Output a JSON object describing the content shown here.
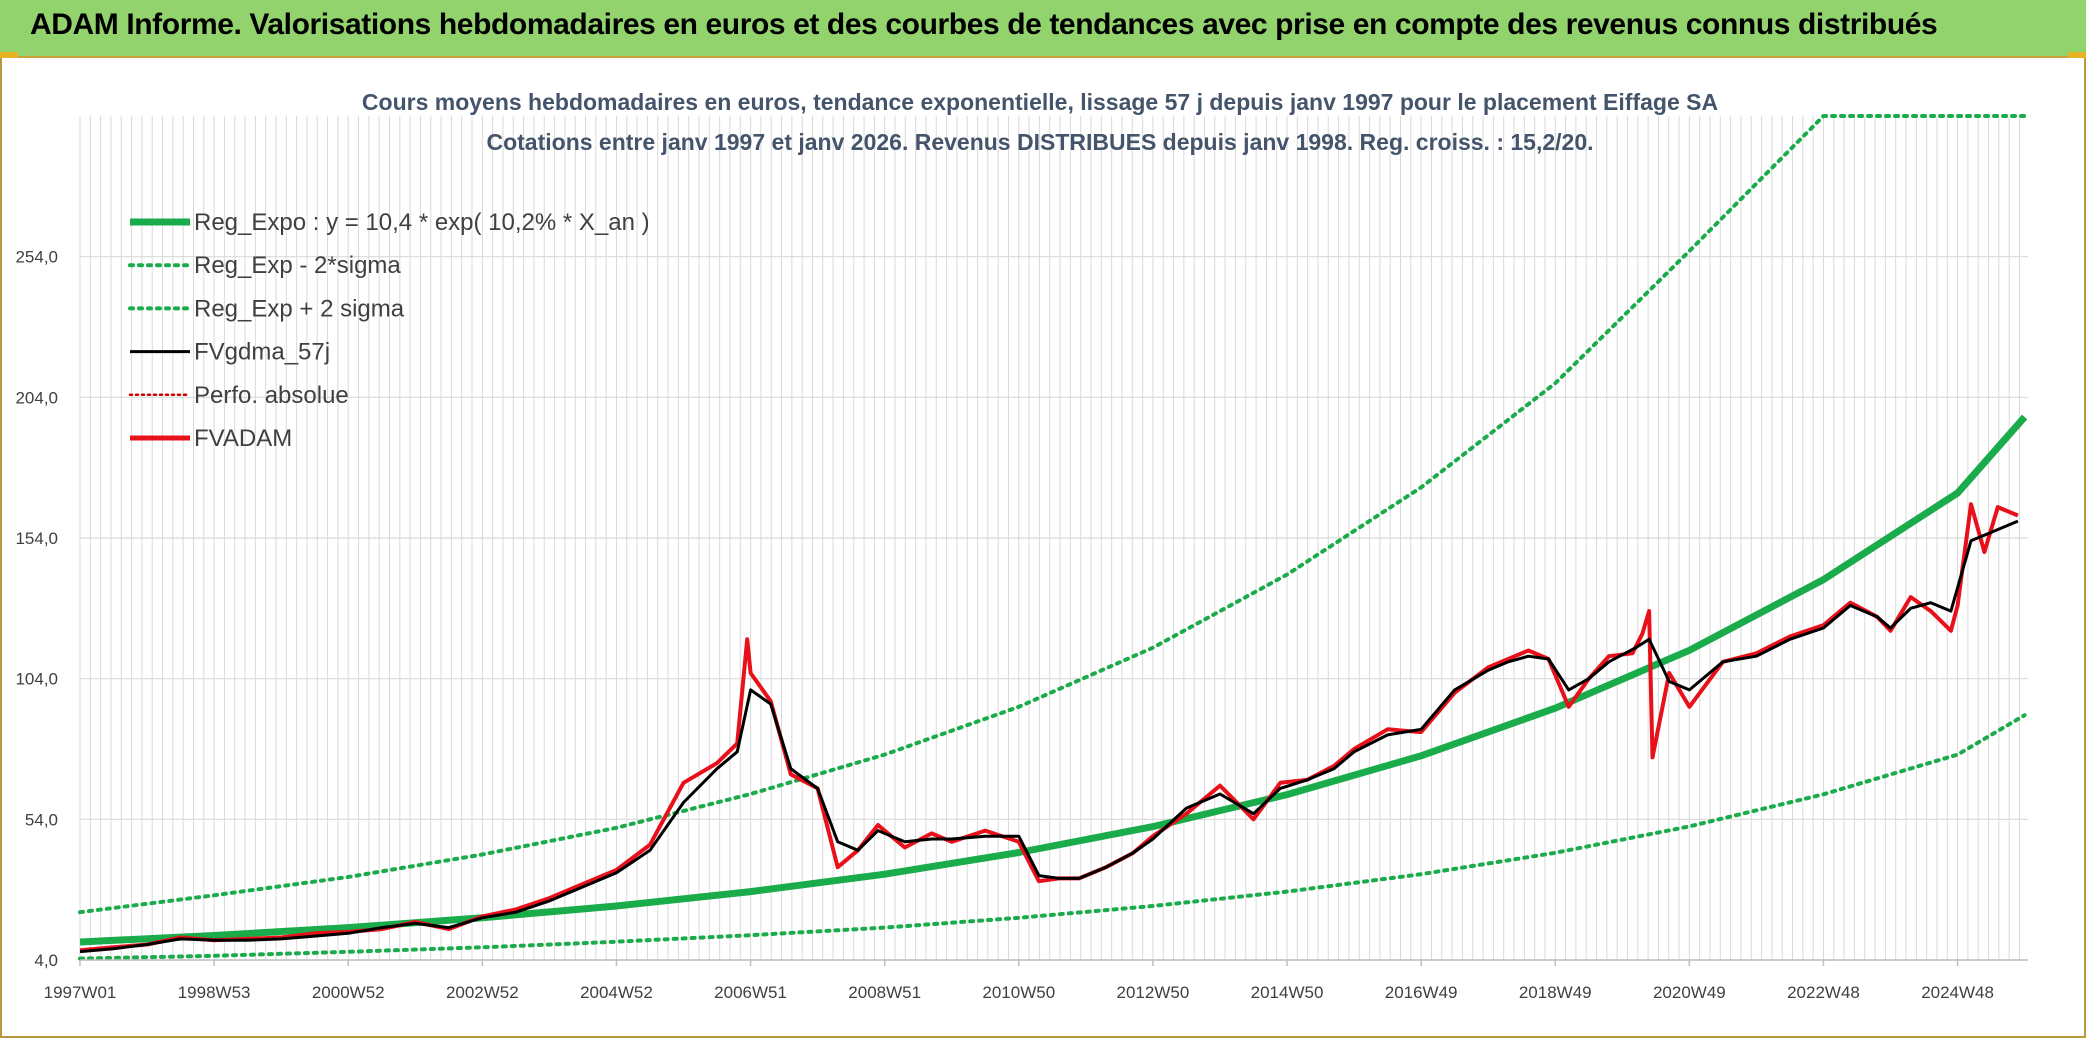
{
  "banner": {
    "title": "ADAM Informe. Valorisations hebdomadaires en euros et des courbes de tendances avec prise en compte des revenus connus distribués"
  },
  "colors": {
    "banner_bg": "#92d36e",
    "trend": "#1aab4a",
    "bands": "#1aab4a",
    "smoothed": "#000000",
    "perfo": "#d40000",
    "fvadam": "#e8101a",
    "grid": "#d9d9d9"
  },
  "chart_data": {
    "type": "line",
    "title": "Cours moyens hebdomadaires en euros, tendance exponentielle, lissage 57 j depuis janv 1997 pour le placement Eiffage SA",
    "subtitle": "Cotations entre janv 1997 et janv 2026. Revenus DISTRIBUES depuis janv 1998. Reg. croiss. : 15,2/20.",
    "xlabel": "",
    "ylabel": "",
    "x_range": [
      "1997W01",
      "2026W01"
    ],
    "x_ticks": [
      "1997W01",
      "1998W53",
      "2000W52",
      "2002W52",
      "2004W52",
      "2006W51",
      "2008W51",
      "2010W50",
      "2012W50",
      "2014W50",
      "2016W49",
      "2018W49",
      "2020W49",
      "2022W48",
      "2024W48"
    ],
    "x_tick_years": [
      1997.0,
      1999.0,
      2001.0,
      2003.0,
      2005.0,
      2007.0,
      2009.0,
      2011.0,
      2013.0,
      2015.0,
      2017.0,
      2019.0,
      2021.0,
      2023.0,
      2025.0
    ],
    "ylim": [
      4,
      304
    ],
    "y_ticks": [
      "4,0",
      "54,0",
      "104,0",
      "154,0",
      "204,0",
      "254,0"
    ],
    "y_tick_values": [
      4,
      54,
      104,
      154,
      204,
      254
    ],
    "grid": true,
    "legend_position": "top-left",
    "legend": [
      {
        "label": "Reg_Expo : y = 10,4 * exp( 10,2% *  X_an )",
        "style": "solid-thick",
        "color": "#1aab4a"
      },
      {
        "label": "Reg_Exp - 2*sigma",
        "style": "dotted",
        "color": "#1aab4a"
      },
      {
        "label": "Reg_Exp + 2 sigma",
        "style": "dotted",
        "color": "#1aab4a"
      },
      {
        "label": "FVgdma_57j",
        "style": "solid",
        "color": "#000000"
      },
      {
        "label": "Perfo. absolue",
        "style": "dotted",
        "color": "#d40000"
      },
      {
        "label": "FVADAM",
        "style": "solid-thick",
        "color": "#e8101a"
      }
    ],
    "series": [
      {
        "name": "Reg_Expo : y = 10,4 * exp( 10,2% *  X_an )",
        "x": [
          1997.0,
          1999.0,
          2001.0,
          2003.0,
          2005.0,
          2007.0,
          2009.0,
          2011.0,
          2013.0,
          2015.0,
          2017.0,
          2019.0,
          2021.0,
          2023.0,
          2025.0,
          2026.0
        ],
        "values": [
          10.4,
          12.7,
          15.5,
          19.0,
          23.2,
          28.3,
          34.5,
          42.2,
          51.4,
          62.8,
          76.6,
          93.5,
          114.1,
          139.2,
          170.0,
          197.0
        ]
      },
      {
        "name": "Reg_Exp - 2*sigma",
        "x": [
          1997.0,
          1999.0,
          2001.0,
          2003.0,
          2005.0,
          2007.0,
          2009.0,
          2011.0,
          2013.0,
          2015.0,
          2017.0,
          2019.0,
          2021.0,
          2023.0,
          2025.0,
          2026.0
        ],
        "values": [
          4.5,
          5.5,
          6.9,
          8.5,
          10.5,
          12.8,
          15.5,
          19.0,
          23.2,
          28.3,
          34.5,
          42.1,
          51.5,
          62.9,
          77.0,
          91.0
        ]
      },
      {
        "name": "Reg_Exp + 2 sigma",
        "x": [
          1997.0,
          1999.0,
          2001.0,
          2003.0,
          2005.0,
          2007.0,
          2009.0,
          2011.0,
          2013.0,
          2015.0,
          2017.0,
          2019.0,
          2021.0,
          2023.0,
          2025.0,
          2026.0
        ],
        "values": [
          21.0,
          27.0,
          33.5,
          41.5,
          51.0,
          63.0,
          77.0,
          94.0,
          115.0,
          141.0,
          172.0,
          209.0,
          256.0,
          304.0,
          304.0,
          304.0
        ]
      },
      {
        "name": "FVgdma_57j",
        "x": [
          1997.0,
          1997.5,
          1998.0,
          1998.5,
          1999.0,
          1999.5,
          2000.0,
          2000.5,
          2001.0,
          2001.5,
          2002.0,
          2002.5,
          2003.0,
          2003.5,
          2004.0,
          2004.5,
          2005.0,
          2005.5,
          2006.0,
          2006.5,
          2006.8,
          2007.0,
          2007.3,
          2007.6,
          2008.0,
          2008.3,
          2008.6,
          2008.9,
          2009.3,
          2009.7,
          2010.0,
          2010.5,
          2011.0,
          2011.3,
          2011.6,
          2011.9,
          2012.3,
          2012.7,
          2013.0,
          2013.5,
          2014.0,
          2014.5,
          2014.9,
          2015.3,
          2015.7,
          2016.0,
          2016.5,
          2017.0,
          2017.5,
          2018.0,
          2018.3,
          2018.6,
          2018.9,
          2019.2,
          2019.5,
          2019.8,
          2020.2,
          2020.4,
          2020.7,
          2021.0,
          2021.5,
          2022.0,
          2022.5,
          2023.0,
          2023.4,
          2023.8,
          2024.0,
          2024.3,
          2024.6,
          2024.9,
          2025.2,
          2025.5,
          2025.9
        ],
        "values": [
          7.0,
          8.0,
          9.5,
          11.5,
          11.0,
          11.0,
          11.5,
          12.5,
          13.5,
          15.5,
          17.0,
          15.5,
          19.0,
          21.0,
          25.0,
          30.0,
          35.0,
          43.0,
          60.0,
          72.0,
          78.0,
          100.0,
          95.0,
          72.0,
          65.0,
          46.0,
          43.0,
          50.0,
          46.0,
          47.0,
          47.0,
          48.0,
          48.0,
          34.0,
          33.0,
          33.0,
          37.0,
          42.0,
          47.0,
          58.0,
          63.0,
          56.0,
          65.0,
          68.0,
          72.0,
          78.0,
          84.0,
          86.0,
          100.0,
          107.0,
          110.0,
          112.0,
          111.0,
          100.0,
          104.0,
          110.0,
          115.0,
          118.0,
          103.0,
          100.0,
          110.0,
          112.0,
          118.0,
          122.0,
          130.0,
          126.0,
          122.0,
          129.0,
          131.0,
          128.0,
          153.0,
          156.0,
          160.0
        ]
      },
      {
        "name": "Perfo. absolue",
        "x": [
          1997.0,
          1998.0,
          2000.0,
          2002.0,
          2004.0,
          2006.0,
          2007.0,
          2008.5,
          2010.0,
          2011.5,
          2013.0,
          2015.0,
          2017.0,
          2019.0,
          2020.4,
          2021.0,
          2023.0,
          2024.5,
          2025.9
        ],
        "values": [
          7.0,
          10.0,
          12.0,
          16.0,
          25.0,
          60.0,
          100.0,
          45.0,
          48.0,
          33.0,
          47.0,
          68.0,
          86.0,
          106.0,
          118.0,
          100.0,
          122.0,
          130.0,
          160.0
        ]
      },
      {
        "name": "FVADAM",
        "x": [
          1997.0,
          1997.5,
          1998.0,
          1998.5,
          1999.0,
          1999.5,
          2000.0,
          2000.5,
          2001.0,
          2001.5,
          2002.0,
          2002.5,
          2003.0,
          2003.5,
          2004.0,
          2004.5,
          2005.0,
          2005.5,
          2006.0,
          2006.5,
          2006.8,
          2006.95,
          2007.0,
          2007.3,
          2007.6,
          2008.0,
          2008.3,
          2008.6,
          2008.9,
          2009.3,
          2009.7,
          2010.0,
          2010.5,
          2011.0,
          2011.3,
          2011.6,
          2011.9,
          2012.3,
          2012.7,
          2013.0,
          2013.5,
          2014.0,
          2014.5,
          2014.9,
          2015.3,
          2015.7,
          2016.0,
          2016.5,
          2017.0,
          2017.5,
          2018.0,
          2018.3,
          2018.6,
          2018.9,
          2019.2,
          2019.5,
          2019.8,
          2020.15,
          2020.3,
          2020.4,
          2020.45,
          2020.7,
          2021.0,
          2021.5,
          2022.0,
          2022.5,
          2023.0,
          2023.4,
          2023.8,
          2024.0,
          2024.3,
          2024.6,
          2024.9,
          2025.0,
          2025.2,
          2025.4,
          2025.6,
          2025.9
        ],
        "values": [
          7.5,
          8.5,
          9.5,
          12.0,
          11.0,
          11.5,
          12.0,
          13.5,
          14.0,
          15.0,
          17.5,
          15.0,
          19.5,
          22.0,
          26.0,
          31.0,
          36.0,
          45.0,
          67.0,
          74.0,
          81.0,
          118.0,
          106.0,
          96.0,
          70.0,
          65.0,
          37.0,
          43.0,
          52.0,
          44.0,
          49.0,
          46.0,
          50.0,
          46.0,
          32.0,
          33.0,
          33.0,
          37.0,
          42.0,
          48.0,
          56.0,
          66.0,
          54.0,
          67.0,
          68.0,
          73.0,
          79.0,
          86.0,
          85.0,
          99.0,
          108.0,
          111.0,
          114.0,
          111.0,
          94.0,
          104.0,
          112.0,
          113.0,
          120.0,
          128.0,
          76.0,
          106.0,
          94.0,
          110.0,
          113.0,
          119.0,
          123.0,
          131.0,
          126.0,
          121.0,
          133.0,
          128.0,
          121.0,
          130.0,
          166.0,
          149.0,
          165.0,
          162.0
        ]
      }
    ]
  }
}
